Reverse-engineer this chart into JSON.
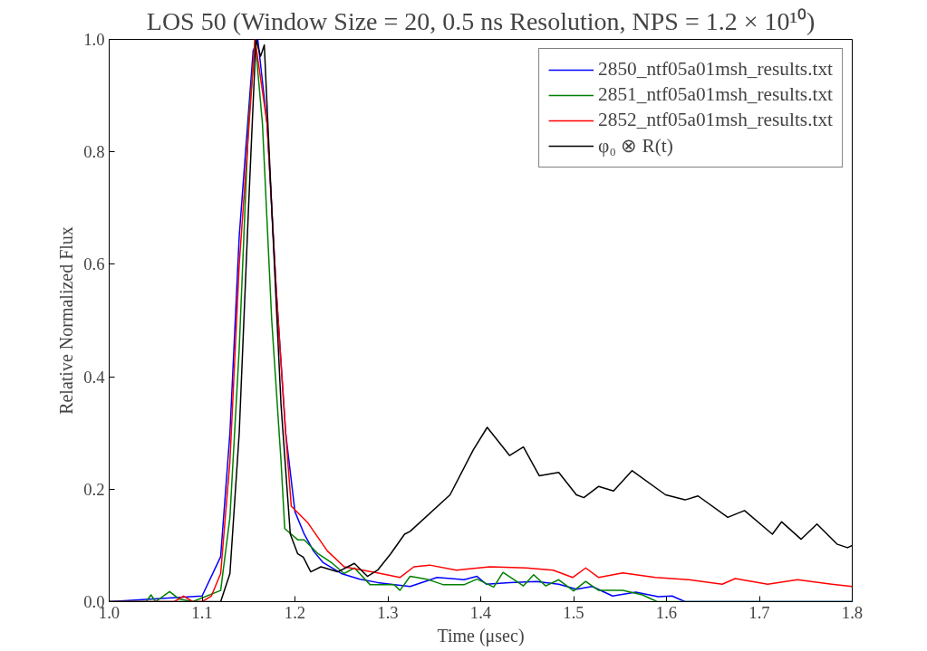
{
  "chart_data": {
    "type": "line",
    "title": "LOS 50 (Window Size = 20, 0.5 ns Resolution, NPS = 1.2 × 10¹⁰)",
    "xlabel": "Time (μsec)",
    "ylabel": "Relative Normalized Flux",
    "xlim": [
      1.0,
      1.8
    ],
    "ylim": [
      0.0,
      1.0
    ],
    "xticks": [
      {
        "value": 1.0,
        "label": "1.0"
      },
      1.1,
      1.2,
      1.3,
      1.4,
      1.5,
      1.6,
      1.7,
      1.8
    ],
    "yticks": [
      {
        "value": 0.0,
        "label": "0.0"
      },
      0.2,
      0.4,
      0.6,
      0.8,
      {
        "value": 1.0,
        "label": "1.0"
      }
    ],
    "grid": false,
    "legend": "top right",
    "marker": "none",
    "line_style": "solid",
    "series": [
      {
        "name": "2850_ntf05a01msh_results.txt",
        "color": "#0000ff",
        "x": [
          1.0,
          1.1,
          1.12,
          1.13,
          1.14,
          1.155,
          1.16,
          1.17,
          1.18,
          1.19,
          1.2,
          1.21,
          1.22,
          1.23,
          1.25,
          1.27,
          1.289,
          1.303,
          1.324,
          1.353,
          1.382,
          1.396,
          1.406,
          1.431,
          1.46,
          1.484,
          1.503,
          1.52,
          1.542,
          1.567,
          1.591,
          1.606,
          1.62,
          1.8
        ],
        "values": [
          0.0,
          0.01,
          0.08,
          0.3,
          0.65,
          0.98,
          1.0,
          0.85,
          0.55,
          0.3,
          0.16,
          0.12,
          0.09,
          0.07,
          0.05,
          0.04,
          0.034,
          0.031,
          0.027,
          0.043,
          0.039,
          0.045,
          0.031,
          0.034,
          0.036,
          0.031,
          0.022,
          0.027,
          0.01,
          0.017,
          0.009,
          0.01,
          0.0,
          0.0
        ]
      },
      {
        "name": "2851_ntf05a01msh_results.txt",
        "color": "#008000",
        "x": [
          1.0,
          1.04,
          1.045,
          1.05,
          1.065,
          1.075,
          1.09,
          1.12,
          1.13,
          1.14,
          1.15,
          1.157,
          1.165,
          1.175,
          1.185,
          1.189,
          1.203,
          1.21,
          1.225,
          1.239,
          1.253,
          1.264,
          1.281,
          1.307,
          1.313,
          1.324,
          1.342,
          1.36,
          1.382,
          1.396,
          1.414,
          1.424,
          1.446,
          1.457,
          1.47,
          1.484,
          1.5,
          1.513,
          1.527,
          1.553,
          1.574,
          1.59,
          1.8
        ],
        "values": [
          0.0,
          0.0,
          0.012,
          0.0,
          0.018,
          0.005,
          0.0,
          0.02,
          0.15,
          0.45,
          0.85,
          1.0,
          0.85,
          0.5,
          0.25,
          0.13,
          0.11,
          0.11,
          0.085,
          0.07,
          0.05,
          0.06,
          0.03,
          0.03,
          0.02,
          0.045,
          0.04,
          0.03,
          0.03,
          0.04,
          0.026,
          0.052,
          0.028,
          0.048,
          0.028,
          0.039,
          0.019,
          0.036,
          0.02,
          0.02,
          0.012,
          0.0,
          0.0
        ]
      },
      {
        "name": "2852_ntf05a01msh_results.txt",
        "color": "#ff0000",
        "x": [
          1.0,
          1.07,
          1.08,
          1.09,
          1.1,
          1.11,
          1.12,
          1.13,
          1.14,
          1.157,
          1.17,
          1.18,
          1.19,
          1.196,
          1.214,
          1.235,
          1.253,
          1.289,
          1.313,
          1.328,
          1.345,
          1.374,
          1.41,
          1.449,
          1.478,
          1.499,
          1.513,
          1.527,
          1.553,
          1.588,
          1.624,
          1.66,
          1.674,
          1.709,
          1.741,
          1.778,
          1.8
        ],
        "values": [
          0.0,
          0.0,
          0.01,
          0.0,
          0.0,
          0.01,
          0.05,
          0.25,
          0.6,
          1.0,
          0.85,
          0.55,
          0.3,
          0.17,
          0.14,
          0.09,
          0.062,
          0.051,
          0.043,
          0.062,
          0.065,
          0.056,
          0.062,
          0.06,
          0.056,
          0.043,
          0.06,
          0.043,
          0.051,
          0.043,
          0.039,
          0.031,
          0.041,
          0.031,
          0.039,
          0.031,
          0.027
        ]
      },
      {
        "name": "φ₀ ⊗ R(t)",
        "color": "#000000",
        "x": [
          1.0,
          1.12,
          1.13,
          1.14,
          1.15,
          1.158,
          1.163,
          1.167,
          1.175,
          1.185,
          1.195,
          1.203,
          1.209,
          1.217,
          1.228,
          1.246,
          1.264,
          1.278,
          1.289,
          1.303,
          1.318,
          1.324,
          1.367,
          1.392,
          1.407,
          1.431,
          1.446,
          1.463,
          1.484,
          1.503,
          1.511,
          1.527,
          1.543,
          1.563,
          1.599,
          1.62,
          1.634,
          1.666,
          1.684,
          1.714,
          1.724,
          1.745,
          1.762,
          1.784,
          1.795,
          1.8
        ],
        "values": [
          0.0,
          0.0,
          0.05,
          0.3,
          0.7,
          1.0,
          0.97,
          0.99,
          0.7,
          0.35,
          0.12,
          0.085,
          0.079,
          0.053,
          0.062,
          0.053,
          0.068,
          0.045,
          0.056,
          0.085,
          0.12,
          0.125,
          0.19,
          0.27,
          0.31,
          0.26,
          0.275,
          0.224,
          0.23,
          0.19,
          0.185,
          0.205,
          0.197,
          0.233,
          0.19,
          0.181,
          0.188,
          0.15,
          0.162,
          0.12,
          0.142,
          0.111,
          0.138,
          0.102,
          0.096,
          0.1
        ]
      }
    ]
  }
}
